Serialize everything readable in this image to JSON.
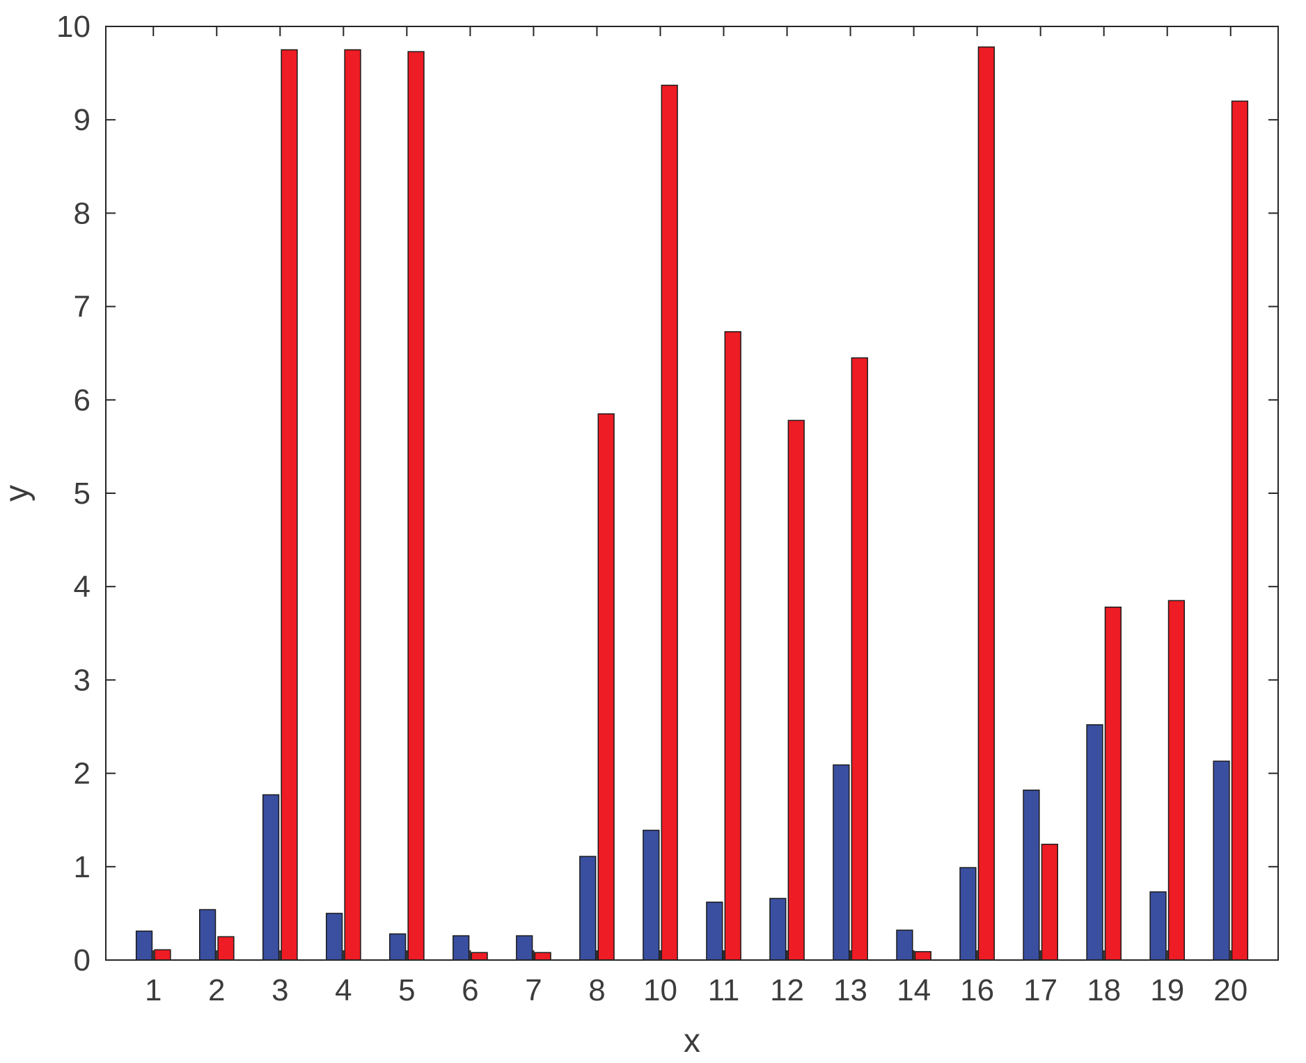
{
  "chart_data": {
    "type": "bar",
    "title": "",
    "xlabel": "x",
    "ylabel": "y",
    "ylim": [
      0,
      10
    ],
    "yticks": [
      0,
      1,
      2,
      3,
      4,
      5,
      6,
      7,
      8,
      9,
      10
    ],
    "grid": false,
    "legend": "none",
    "categories": [
      "1",
      "2",
      "3",
      "4",
      "5",
      "6",
      "7",
      "8",
      "10",
      "11",
      "12",
      "13",
      "14",
      "16",
      "17",
      "18",
      "19",
      "20"
    ],
    "series": [
      {
        "color": "#3a4fa0",
        "values": [
          0.31,
          0.54,
          1.77,
          0.5,
          0.28,
          0.26,
          0.26,
          1.11,
          1.39,
          0.62,
          0.66,
          2.09,
          0.32,
          0.99,
          1.82,
          2.52,
          0.73,
          2.13
        ]
      },
      {
        "color": "#ee1c24",
        "values": [
          0.11,
          0.25,
          9.75,
          9.75,
          9.73,
          0.08,
          0.08,
          5.85,
          9.37,
          6.73,
          5.78,
          6.45,
          0.09,
          9.78,
          1.24,
          3.78,
          3.85,
          9.2
        ]
      }
    ]
  }
}
